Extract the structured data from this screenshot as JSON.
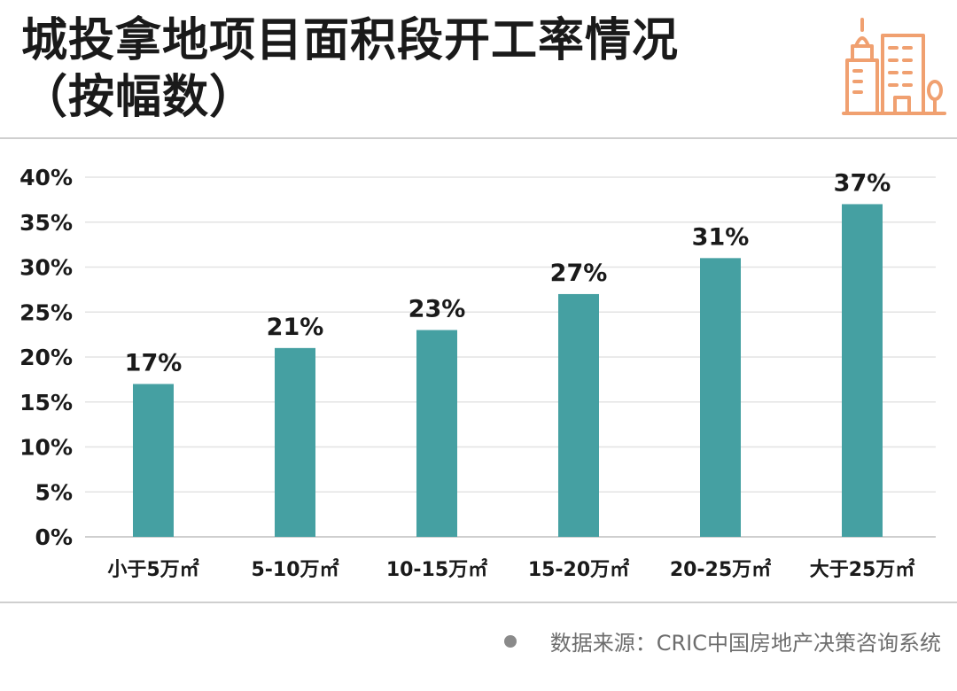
{
  "header": {
    "title_line1": "城投拿地项目面积段开工率情况",
    "title_line2": "（按幅数）",
    "logo_icon": "city-buildings-icon",
    "logo_color": "#F0A070"
  },
  "footer": {
    "source": "数据来源：CRIC中国房地产决策咨询系统"
  },
  "chart_data": {
    "type": "bar",
    "title": "城投拿地项目面积段开工率情况（按幅数）",
    "categories": [
      "小于5万㎡",
      "5-10万㎡",
      "10-15万㎡",
      "15-20万㎡",
      "20-25万㎡",
      "大于25万㎡"
    ],
    "values": [
      17,
      21,
      23,
      27,
      31,
      37
    ],
    "data_labels": [
      "17%",
      "21%",
      "23%",
      "27%",
      "31%",
      "37%"
    ],
    "ylim": [
      0,
      40
    ],
    "yticks": [
      0,
      5,
      10,
      15,
      20,
      25,
      30,
      35,
      40
    ],
    "ytick_labels": [
      "0%",
      "5%",
      "10%",
      "15%",
      "20%",
      "25%",
      "30%",
      "35%",
      "40%"
    ],
    "xlabel": "",
    "ylabel": "",
    "grid": true,
    "bar_color": "#45A0A2",
    "grid_color": "#E3E3E3"
  }
}
